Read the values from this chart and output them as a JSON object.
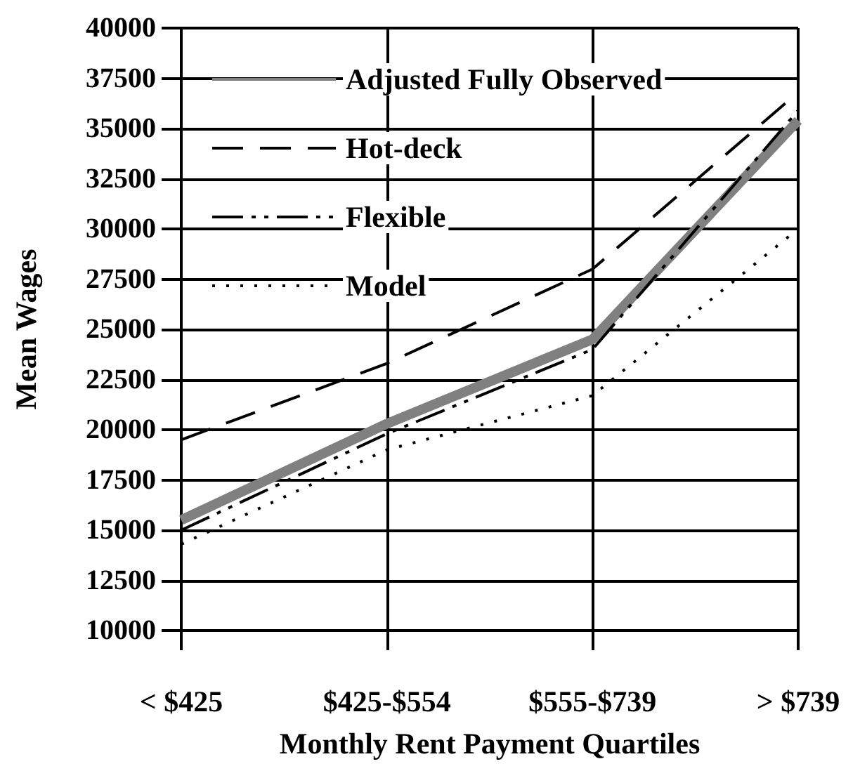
{
  "chart_data": {
    "type": "line",
    "xlabel": "Monthly Rent Payment Quartiles",
    "ylabel": "Mean Wages",
    "categories": [
      "< $425",
      "$425-$554",
      "$555-$739",
      "> $739"
    ],
    "series": [
      {
        "name": "Adjusted Fully Observed",
        "color": "#808080",
        "line_style": "solid",
        "values": [
          15500,
          20300,
          24500,
          35400
        ]
      },
      {
        "name": "Hot-deck",
        "color": "#000000",
        "line_style": "dashed",
        "values": [
          19500,
          23300,
          28000,
          36800
        ]
      },
      {
        "name": "Flexible",
        "color": "#000000",
        "line_style": "dashdot",
        "values": [
          15000,
          19800,
          24000,
          35900
        ]
      },
      {
        "name": "Model",
        "color": "#000000",
        "line_style": "dotted",
        "values": [
          14300,
          19000,
          21700,
          30000
        ]
      }
    ],
    "ylim": [
      10000,
      40000
    ],
    "yticks": [
      10000,
      12500,
      15000,
      17500,
      20000,
      22500,
      25000,
      27500,
      30000,
      32500,
      35000,
      37500,
      40000
    ],
    "grid": true,
    "legend": "top left",
    "marker": "none"
  }
}
